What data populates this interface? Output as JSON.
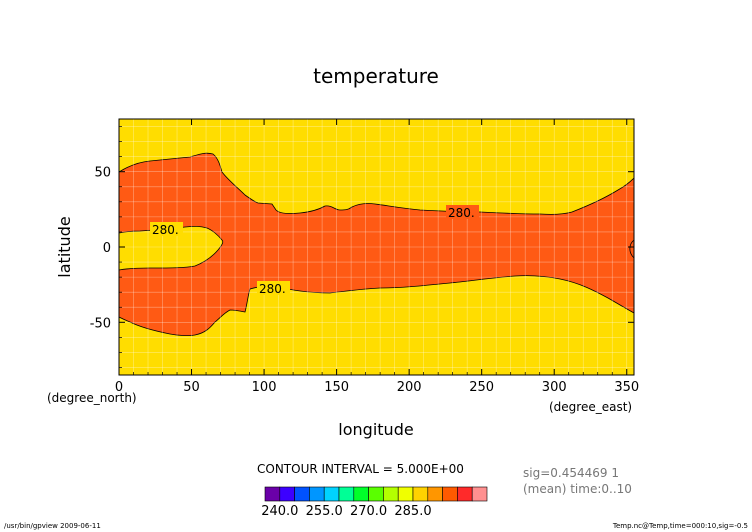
{
  "chart_data": {
    "type": "contour",
    "title": "temperature",
    "xlabel": "longitude",
    "ylabel": "latitude",
    "x_unit": "(degree_east)",
    "y_unit": "(degree_north)",
    "xlim": [
      0,
      355
    ],
    "ylim": [
      -85,
      85
    ],
    "x_ticks": [
      0,
      50,
      100,
      150,
      200,
      250,
      300,
      350
    ],
    "y_ticks": [
      -50,
      0,
      50
    ],
    "grid": true,
    "contour_label": "280.",
    "contour_interval": "CONTOUR INTERVAL = 5.000E+00",
    "colorbar": {
      "tick_labels": [
        "240.0",
        "255.0",
        "270.0",
        "285.0"
      ],
      "colors": [
        "#6a00a8",
        "#3c00ff",
        "#0052ff",
        "#0096ff",
        "#00d2ff",
        "#00ff96",
        "#00ff2a",
        "#5aff00",
        "#b4ff00",
        "#f0ff00",
        "#ffd200",
        "#ff9600",
        "#ff5a00",
        "#ff2a2a",
        "#ff9090"
      ]
    },
    "regions": [
      {
        "name": "above 280",
        "color": "#ff5a14"
      },
      {
        "name": "below 280",
        "color": "#ffdd00"
      }
    ],
    "info_line1": "sig=0.454469  1",
    "info_line2": "(mean) time:0..10"
  },
  "footer": {
    "left": "/usr/bin/gpview   2009-06-11",
    "right": "Temp.nc@Temp,time=000:10,sig=-0.5"
  }
}
